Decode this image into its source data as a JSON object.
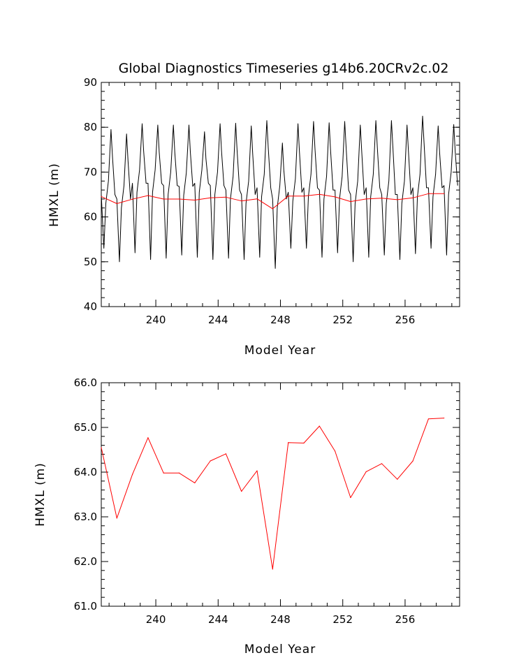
{
  "chart_data": [
    {
      "type": "line",
      "title": "Global Diagnostics Timeseries g14b6.20CRv2c.02",
      "xlabel": "Model Year",
      "ylabel": "HMXL (m)",
      "xlim": [
        236.5,
        259.5
      ],
      "ylim": [
        40,
        90
      ],
      "xticks": [
        240,
        244,
        248,
        252,
        256
      ],
      "xtick_labels": [
        "240",
        "244",
        "248",
        "252",
        "256"
      ],
      "yticks": [
        40,
        50,
        60,
        70,
        80,
        90
      ],
      "ytick_labels": [
        "40",
        "50",
        "60",
        "70",
        "80",
        "90"
      ],
      "grid": false,
      "series": [
        {
          "color": "#000000",
          "style": "monthly seasonal cycle",
          "year_start": 236.5,
          "year_end": 259.5,
          "peaks": [
            79.5,
            78.5,
            80.8,
            80.5,
            80.5,
            80.5,
            79.0,
            80.8,
            80.9,
            80.3,
            81.5,
            76.5,
            80.8,
            81.3,
            81.0,
            81.3,
            80.5,
            81.5,
            81.5,
            80.5,
            82.5,
            80.3,
            80.6
          ],
          "troughs": [
            53.0,
            50.0,
            52.0,
            50.5,
            50.8,
            51.5,
            51.0,
            50.5,
            50.8,
            50.5,
            51.0,
            48.5,
            53.0,
            53.0,
            51.0,
            52.0,
            50.0,
            51.0,
            51.5,
            50.5,
            51.8,
            53.0,
            51.5
          ],
          "mids": [
            65.0,
            64.0,
            67.5,
            67.5,
            67.0,
            66.8,
            67.5,
            67.0,
            66.0,
            65.0,
            66.5,
            64.0,
            65.5,
            66.5,
            66.0,
            66.0,
            65.0,
            66.5,
            65.0,
            65.0,
            66.5,
            66.5,
            67.0
          ]
        },
        {
          "color": "#ff0000",
          "x": [
            236.5,
            237.5,
            238.5,
            239.5,
            240.5,
            241.5,
            242.5,
            243.5,
            244.5,
            245.5,
            246.5,
            247.5,
            248.5,
            249.5,
            250.5,
            251.5,
            252.5,
            253.5,
            254.5,
            255.5,
            256.5,
            257.5,
            258.5
          ],
          "values": [
            64.55,
            62.97,
            63.95,
            64.77,
            63.98,
            63.98,
            63.76,
            64.25,
            64.41,
            63.57,
            64.03,
            61.83,
            64.66,
            64.65,
            65.03,
            64.47,
            63.43,
            64.01,
            64.19,
            63.84,
            64.25,
            65.19,
            65.21
          ]
        }
      ]
    },
    {
      "type": "line",
      "title": "",
      "xlabel": "Model Year",
      "ylabel": "HMXL (m)",
      "xlim": [
        236.5,
        259.5
      ],
      "ylim": [
        61.0,
        66.0
      ],
      "xticks": [
        240,
        244,
        248,
        252,
        256
      ],
      "xtick_labels": [
        "240",
        "244",
        "248",
        "252",
        "256"
      ],
      "yticks": [
        61,
        62,
        63,
        64,
        65,
        66
      ],
      "ytick_labels": [
        "61.0",
        "62.0",
        "63.0",
        "64.0",
        "65.0",
        "66.0"
      ],
      "grid": false,
      "series": [
        {
          "color": "#ff0000",
          "x": [
            236.5,
            237.5,
            238.5,
            239.5,
            240.5,
            241.5,
            242.5,
            243.5,
            244.5,
            245.5,
            246.5,
            247.5,
            248.5,
            249.5,
            250.5,
            251.5,
            252.5,
            253.5,
            254.5,
            255.5,
            256.5,
            257.5,
            258.5
          ],
          "values": [
            64.55,
            62.97,
            63.95,
            64.77,
            63.98,
            63.98,
            63.76,
            64.25,
            64.41,
            63.57,
            64.03,
            61.83,
            64.66,
            64.65,
            65.03,
            64.47,
            63.43,
            64.01,
            64.19,
            63.84,
            64.25,
            65.19,
            65.21
          ]
        }
      ]
    }
  ]
}
